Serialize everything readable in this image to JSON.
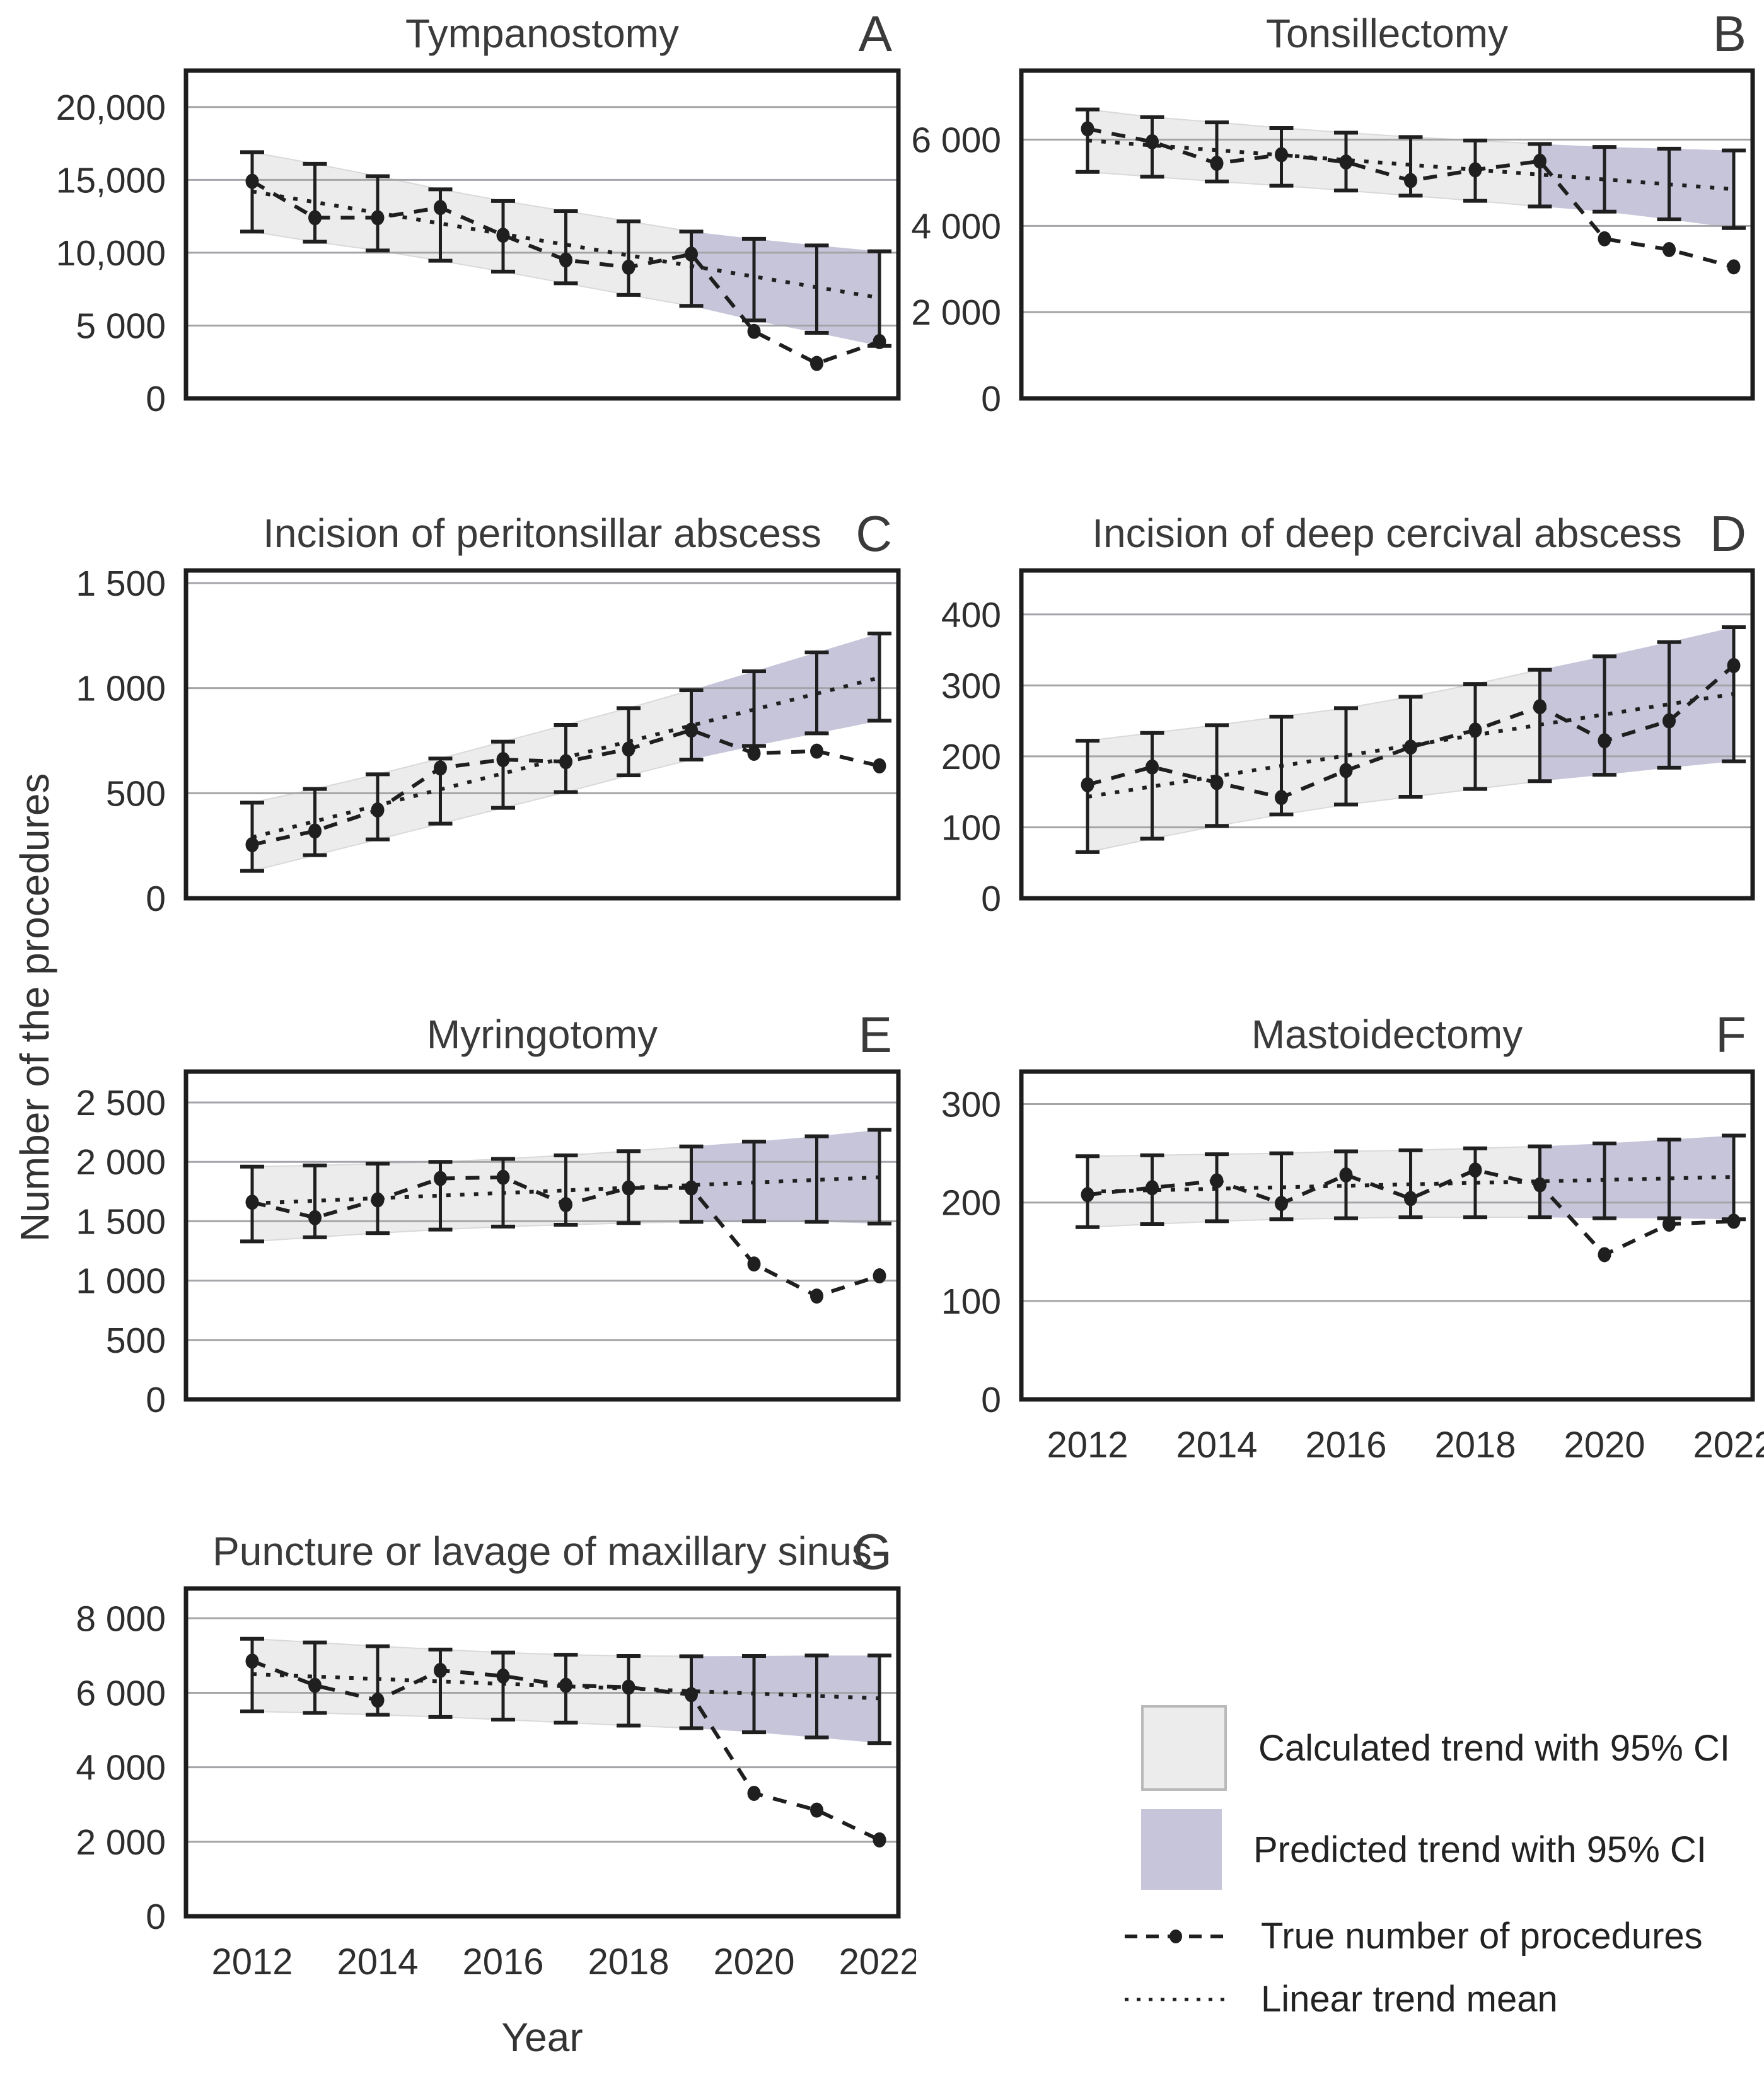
{
  "figure": {
    "ylabel": "Number of the procedures",
    "xlabel": "Year",
    "colors": {
      "calculated_band": "#ececec",
      "calculated_band_edge": "#d9d9d9",
      "predicted_band": "#c6c5da",
      "gridline": "#a5a5a9",
      "line": "#1f1f1f",
      "box_border": "#1d1d1d",
      "text": "#2e2e2e"
    },
    "legend": [
      {
        "kind": "band-calculated",
        "label": "Calculated trend with 95% CI"
      },
      {
        "kind": "band-predicted",
        "label": "Predicted trend with 95% CI"
      },
      {
        "kind": "line-true",
        "label": "True number of procedures"
      },
      {
        "kind": "line-trend",
        "label": "Linear trend mean"
      }
    ]
  },
  "years": [
    2012,
    2013,
    2014,
    2015,
    2016,
    2017,
    2018,
    2019,
    2020,
    2021,
    2022
  ],
  "x_tick_labels": [
    "2012",
    "2014",
    "2016",
    "2018",
    "2020",
    "2022"
  ],
  "chart_data": [
    {
      "id": "A",
      "letter": "A",
      "title": "Tympanostomy",
      "type": "line",
      "ylim": [
        0,
        22500
      ],
      "yticks": [
        {
          "value": 0,
          "label": "0"
        },
        {
          "value": 5000,
          "label": "5 000"
        },
        {
          "value": 10000,
          "label": "10,000"
        },
        {
          "value": 15000,
          "label": "15,000"
        },
        {
          "value": 20000,
          "label": "20,000"
        }
      ],
      "true_values": [
        14900,
        12400,
        12400,
        13100,
        11200,
        9500,
        9000,
        9900,
        4600,
        2400,
        3900
      ],
      "trend_mean": {
        "start": 14200,
        "end": 6900
      },
      "ci_upper": [
        16900,
        16100,
        15250,
        14350,
        13550,
        12850,
        12150,
        11450,
        10950,
        10500,
        10100
      ],
      "ci_lower": [
        11450,
        10750,
        10150,
        9450,
        8700,
        7900,
        7100,
        6350,
        5350,
        4500,
        3600
      ],
      "predicted_from_year": 2019,
      "show_x_ticks": false
    },
    {
      "id": "B",
      "letter": "B",
      "title": "Tonsillectomy",
      "type": "line",
      "ylim": [
        0,
        7600
      ],
      "yticks": [
        {
          "value": 0,
          "label": "0"
        },
        {
          "value": 2000,
          "label": "2 000"
        },
        {
          "value": 4000,
          "label": "4 000"
        },
        {
          "value": 6000,
          "label": "6 000"
        }
      ],
      "true_values": [
        6250,
        5950,
        5450,
        5650,
        5480,
        5050,
        5300,
        5500,
        3700,
        3450,
        3050
      ],
      "trend_mean": {
        "start": 5980,
        "end": 4850
      },
      "ci_upper": [
        6700,
        6520,
        6400,
        6270,
        6160,
        6060,
        5980,
        5900,
        5830,
        5790,
        5750
      ],
      "ci_lower": [
        5250,
        5140,
        5030,
        4930,
        4820,
        4700,
        4580,
        4450,
        4330,
        4150,
        3950
      ],
      "predicted_from_year": 2019,
      "show_x_ticks": false
    },
    {
      "id": "C",
      "letter": "C",
      "title": "Incision of peritonsillar abscess",
      "type": "line",
      "ylim": [
        0,
        1560
      ],
      "yticks": [
        {
          "value": 0,
          "label": "0"
        },
        {
          "value": 500,
          "label": "500"
        },
        {
          "value": 1000,
          "label": "1 000"
        },
        {
          "value": 1500,
          "label": "1 500"
        }
      ],
      "true_values": [
        255,
        320,
        420,
        620,
        660,
        650,
        710,
        800,
        690,
        700,
        630
      ],
      "trend_mean": {
        "start": 290,
        "end": 1050
      },
      "ci_upper": [
        455,
        520,
        590,
        665,
        745,
        825,
        905,
        990,
        1080,
        1170,
        1260
      ],
      "ci_lower": [
        130,
        205,
        280,
        355,
        430,
        505,
        585,
        660,
        725,
        785,
        845
      ],
      "predicted_from_year": 2019,
      "show_x_ticks": false
    },
    {
      "id": "D",
      "letter": "D",
      "title": "Incision of deep cercival abscess",
      "type": "line",
      "ylim": [
        0,
        462
      ],
      "yticks": [
        {
          "value": 0,
          "label": "0"
        },
        {
          "value": 100,
          "label": "100"
        },
        {
          "value": 200,
          "label": "200"
        },
        {
          "value": 300,
          "label": "300"
        },
        {
          "value": 400,
          "label": "400"
        }
      ],
      "true_values": [
        160,
        185,
        163,
        142,
        180,
        213,
        237,
        270,
        222,
        250,
        328
      ],
      "trend_mean": {
        "start": 143,
        "end": 288
      },
      "ci_upper": [
        222,
        233,
        244,
        256,
        268,
        284,
        302,
        322,
        341,
        361,
        382
      ],
      "ci_lower": [
        65,
        84,
        102,
        118,
        132,
        143,
        154,
        165,
        174,
        184,
        193
      ],
      "predicted_from_year": 2019,
      "show_x_ticks": false
    },
    {
      "id": "E",
      "letter": "E",
      "title": "Myringotomy",
      "type": "line",
      "ylim": [
        0,
        2760
      ],
      "yticks": [
        {
          "value": 0,
          "label": "0"
        },
        {
          "value": 500,
          "label": "500"
        },
        {
          "value": 1000,
          "label": "1 000"
        },
        {
          "value": 1500,
          "label": "1 500"
        },
        {
          "value": 2000,
          "label": "2 000"
        },
        {
          "value": 2500,
          "label": "2 500"
        }
      ],
      "true_values": [
        1660,
        1530,
        1680,
        1860,
        1870,
        1640,
        1780,
        1780,
        1140,
        870,
        1040
      ],
      "trend_mean": {
        "start": 1650,
        "end": 1870
      },
      "ci_upper": [
        1960,
        1970,
        1985,
        2000,
        2025,
        2055,
        2090,
        2130,
        2170,
        2215,
        2270
      ],
      "ci_lower": [
        1330,
        1365,
        1400,
        1430,
        1455,
        1470,
        1485,
        1495,
        1500,
        1495,
        1480
      ],
      "predicted_from_year": 2019,
      "show_x_ticks": false
    },
    {
      "id": "F",
      "letter": "F",
      "title": "Mastoidectomy",
      "type": "line",
      "ylim": [
        0,
        333
      ],
      "yticks": [
        {
          "value": 0,
          "label": "0"
        },
        {
          "value": 100,
          "label": "100"
        },
        {
          "value": 200,
          "label": "200"
        },
        {
          "value": 300,
          "label": "300"
        }
      ],
      "true_values": [
        208,
        215,
        222,
        199,
        228,
        204,
        233,
        218,
        147,
        178,
        181
      ],
      "trend_mean": {
        "start": 211,
        "end": 226
      },
      "ci_upper": [
        247,
        248,
        249,
        250,
        252,
        253,
        255,
        257,
        260,
        264,
        268
      ],
      "ci_lower": [
        175,
        178,
        181,
        183,
        184,
        185,
        185,
        185,
        184,
        184,
        183
      ],
      "predicted_from_year": 2019,
      "show_x_ticks": true
    },
    {
      "id": "G",
      "letter": "G",
      "title": "Puncture or lavage of maxillary sinus",
      "type": "line",
      "ylim": [
        0,
        8800
      ],
      "yticks": [
        {
          "value": 0,
          "label": "0"
        },
        {
          "value": 2000,
          "label": "2 000"
        },
        {
          "value": 4000,
          "label": "4 000"
        },
        {
          "value": 6000,
          "label": "6 000"
        },
        {
          "value": 8000,
          "label": "8 000"
        }
      ],
      "true_values": [
        6850,
        6200,
        5800,
        6600,
        6450,
        6200,
        6150,
        5950,
        3300,
        2850,
        2050
      ],
      "trend_mean": {
        "start": 6500,
        "end": 5850
      },
      "ci_upper": [
        7450,
        7350,
        7250,
        7160,
        7080,
        7020,
        6990,
        6980,
        6990,
        7000,
        7000
      ],
      "ci_lower": [
        5500,
        5460,
        5410,
        5350,
        5280,
        5200,
        5120,
        5050,
        4940,
        4800,
        4650
      ],
      "predicted_from_year": 2019,
      "show_x_ticks": true
    }
  ]
}
